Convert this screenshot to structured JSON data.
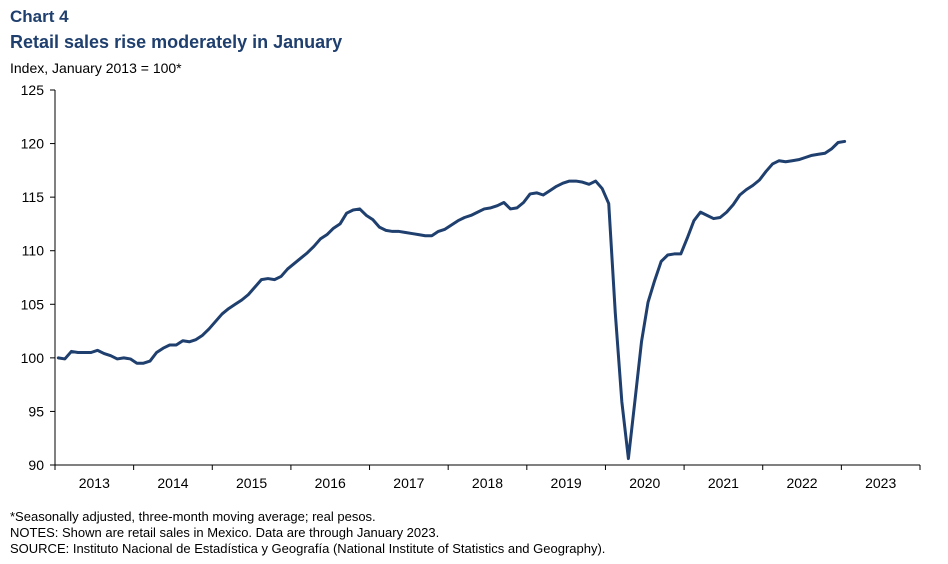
{
  "chart_label": "Chart 4",
  "chart_data": {
    "type": "line",
    "title": "Retail sales rise moderately in January",
    "ylabel": "Index, January 2013 = 100*",
    "xlabel": "",
    "ylim": [
      90,
      125
    ],
    "yticks": [
      90,
      95,
      100,
      105,
      110,
      115,
      120,
      125
    ],
    "x_categories": [
      "2013",
      "2014",
      "2015",
      "2016",
      "2017",
      "2018",
      "2019",
      "2020",
      "2021",
      "2022",
      "2023"
    ],
    "grid": false,
    "color": "#1f3f6e",
    "series": [
      {
        "x": [
          "2013-01",
          "2013-02",
          "2013-03",
          "2013-04",
          "2013-05",
          "2013-06",
          "2013-07",
          "2013-08",
          "2013-09",
          "2013-10",
          "2013-11",
          "2013-12",
          "2014-01",
          "2014-02",
          "2014-03",
          "2014-04",
          "2014-05",
          "2014-06",
          "2014-07",
          "2014-08",
          "2014-09",
          "2014-10",
          "2014-11",
          "2014-12",
          "2015-01",
          "2015-02",
          "2015-03",
          "2015-04",
          "2015-05",
          "2015-06",
          "2015-07",
          "2015-08",
          "2015-09",
          "2015-10",
          "2015-11",
          "2015-12",
          "2016-01",
          "2016-02",
          "2016-03",
          "2016-04",
          "2016-05",
          "2016-06",
          "2016-07",
          "2016-08",
          "2016-09",
          "2016-10",
          "2016-11",
          "2016-12",
          "2017-01",
          "2017-02",
          "2017-03",
          "2017-04",
          "2017-05",
          "2017-06",
          "2017-07",
          "2017-08",
          "2017-09",
          "2017-10",
          "2017-11",
          "2017-12",
          "2018-01",
          "2018-02",
          "2018-03",
          "2018-04",
          "2018-05",
          "2018-06",
          "2018-07",
          "2018-08",
          "2018-09",
          "2018-10",
          "2018-11",
          "2018-12",
          "2019-01",
          "2019-02",
          "2019-03",
          "2019-04",
          "2019-05",
          "2019-06",
          "2019-07",
          "2019-08",
          "2019-09",
          "2019-10",
          "2019-11",
          "2019-12",
          "2020-01",
          "2020-02",
          "2020-03",
          "2020-04",
          "2020-05",
          "2020-06",
          "2020-07",
          "2020-08",
          "2020-09",
          "2020-10",
          "2020-11",
          "2020-12",
          "2021-01",
          "2021-02",
          "2021-03",
          "2021-04",
          "2021-05",
          "2021-06",
          "2021-07",
          "2021-08",
          "2021-09",
          "2021-10",
          "2021-11",
          "2021-12",
          "2022-01",
          "2022-02",
          "2022-03",
          "2022-04",
          "2022-05",
          "2022-06",
          "2022-07",
          "2022-08",
          "2022-09",
          "2022-10",
          "2022-11",
          "2022-12",
          "2023-01"
        ],
        "values": [
          100.0,
          99.9,
          100.6,
          100.5,
          100.5,
          100.5,
          100.7,
          100.4,
          100.2,
          99.9,
          100.0,
          99.9,
          99.5,
          99.5,
          99.7,
          100.5,
          100.9,
          101.2,
          101.2,
          101.6,
          101.5,
          101.7,
          102.1,
          102.7,
          103.4,
          104.1,
          104.6,
          105.0,
          105.4,
          105.9,
          106.6,
          107.3,
          107.4,
          107.3,
          107.6,
          108.3,
          108.8,
          109.3,
          109.8,
          110.4,
          111.1,
          111.5,
          112.1,
          112.5,
          113.5,
          113.8,
          113.9,
          113.3,
          112.9,
          112.2,
          111.9,
          111.8,
          111.8,
          111.7,
          111.6,
          111.5,
          111.4,
          111.4,
          111.8,
          112.0,
          112.4,
          112.8,
          113.1,
          113.3,
          113.6,
          113.9,
          114.0,
          114.2,
          114.5,
          113.9,
          114.0,
          114.5,
          115.3,
          115.4,
          115.2,
          115.6,
          116.0,
          116.3,
          116.5,
          116.5,
          116.4,
          116.2,
          116.5,
          115.8,
          114.4,
          104.2,
          95.9,
          90.6,
          96.0,
          101.5,
          105.2,
          107.2,
          109.0,
          109.6,
          109.7,
          109.7,
          111.2,
          112.8,
          113.6,
          113.3,
          113.0,
          113.1,
          113.6,
          114.3,
          115.2,
          115.7,
          116.1,
          116.6,
          117.4,
          118.1,
          118.4,
          118.3,
          118.4,
          118.5,
          118.7,
          118.9,
          119.0,
          119.1,
          119.5,
          120.1,
          120.2
        ]
      }
    ]
  },
  "notes": {
    "footnote": "*Seasonally adjusted, three-month moving average; real pesos.",
    "notes_line": "NOTES: Shown are retail sales in Mexico. Data are through January 2023.",
    "source": "SOURCE: Instituto Nacional de Estadística y Geografía (National Institute of Statistics and Geography)."
  }
}
